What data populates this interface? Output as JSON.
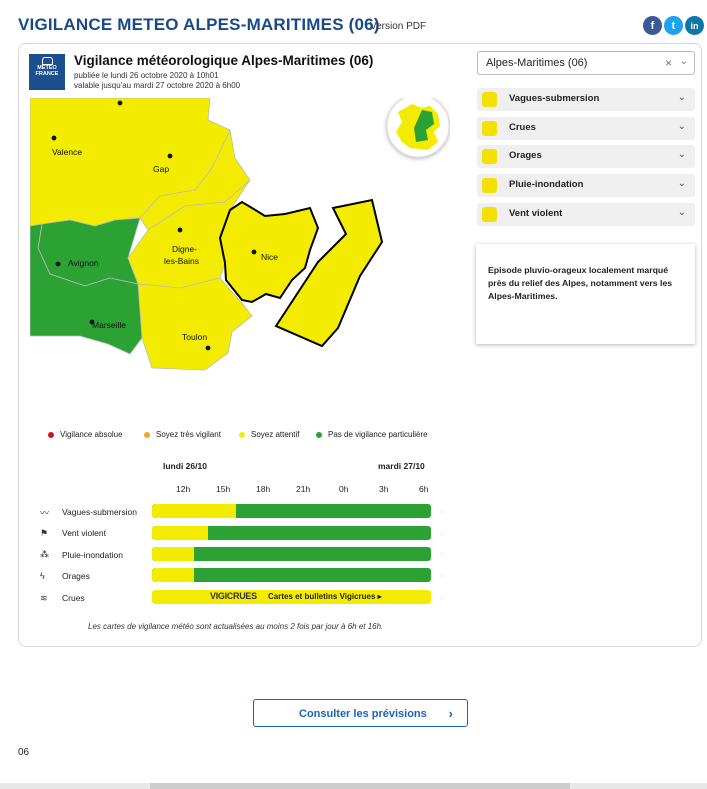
{
  "header": {
    "title": "VIGILANCE METEO ALPES-MARITIMES (06)",
    "pdf_label": "Version PDF"
  },
  "social": [
    {
      "name": "facebook",
      "glyph": "f",
      "color": "#3b5998"
    },
    {
      "name": "twitter",
      "glyph": "t",
      "color": "#1da1f2"
    },
    {
      "name": "linkedin",
      "glyph": "in",
      "color": "#0e76a8"
    }
  ],
  "logo": {
    "line1": "METEO",
    "line2": "FRANCE"
  },
  "map": {
    "title": "Vigilance météorologique Alpes-Maritimes  (06)",
    "published": "publiée le lundi 26 octobre 2020 à 10h01",
    "valid": "valable jusqu'au mardi 27 octobre 2020 à 6h00",
    "cities": {
      "valence": "Valence",
      "gap": "Gap",
      "digne1": "Digne-",
      "digne2": "les-Bains",
      "nice": "Nice",
      "avignon": "Avignon",
      "marseille": "Marseille",
      "toulon": "Toulon"
    }
  },
  "department_select": {
    "value": "Alpes-Maritimes  (06)"
  },
  "phenomena": [
    {
      "label": "Vagues-submersion",
      "icon": "waves-icon"
    },
    {
      "label": "Crues",
      "icon": "flood-icon"
    },
    {
      "label": "Orages",
      "icon": "storm-icon"
    },
    {
      "label": "Pluie-inondation",
      "icon": "rain-icon"
    },
    {
      "label": "Vent violent",
      "icon": "wind-icon"
    }
  ],
  "comment": "Episode pluvio-orageux localement marqué près du relief des Alpes, notamment vers les Alpes-Maritimes.",
  "legend": [
    {
      "label": "Vigilance absolue",
      "color": "#d4121b"
    },
    {
      "label": "Soyez très vigilant",
      "color": "#f5a623"
    },
    {
      "label": "Soyez attentif",
      "color": "#f4ec00"
    },
    {
      "label": "Pas de vigilance particulière",
      "color": "#2ba233"
    }
  ],
  "timeline": {
    "days": [
      "lundi 26/10",
      "mardi 27/10"
    ],
    "hours": [
      "12h",
      "15h",
      "18h",
      "21h",
      "0h",
      "3h",
      "6h"
    ],
    "rows": [
      {
        "label": "Vagues-submersion",
        "icon": "waves-icon",
        "yellow_fraction": 0.3
      },
      {
        "label": "Vent violent",
        "icon": "wind-icon",
        "yellow_fraction": 0.2
      },
      {
        "label": "Pluie-inondation",
        "icon": "rain-icon",
        "yellow_fraction": 0.15
      },
      {
        "label": "Orages",
        "icon": "storm-icon",
        "yellow_fraction": 0.15
      }
    ],
    "crues": {
      "label": "Crues",
      "logo": "VIGICRUES",
      "link": "Cartes et bulletins Vigicrues ▸"
    },
    "note": "Les cartes de vigilance météo sont actualisées au moins 2 fois par jour à 6h et 16h."
  },
  "cta": {
    "label": "Consulter les prévisions",
    "arrow": "›"
  },
  "footer": {
    "text": "06"
  }
}
